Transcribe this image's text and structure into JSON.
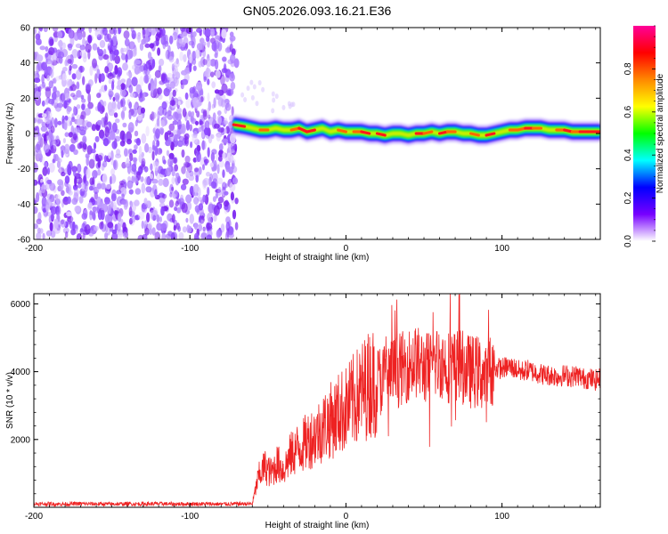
{
  "title": "GN05.2026.093.16.21.E36",
  "chart_data": [
    {
      "type": "heatmap",
      "name": "spectrogram",
      "xlabel": "Height of straight line (km)",
      "ylabel": "Frequency (Hz)",
      "xlim": [
        -200,
        163
      ],
      "ylim": [
        -60,
        60
      ],
      "xticks": [
        -200,
        -100,
        0,
        100
      ],
      "yticks": [
        -60,
        -40,
        -20,
        0,
        20,
        40,
        60
      ],
      "noise_region_x": [
        -200,
        -70
      ],
      "signal_start_x": -72,
      "ridge": {
        "x": [
          -72,
          -65,
          -60,
          -55,
          -50,
          -45,
          -40,
          -35,
          -30,
          -25,
          -20,
          -15,
          -10,
          -5,
          0,
          5,
          10,
          15,
          20,
          25,
          30,
          35,
          40,
          45,
          50,
          55,
          60,
          65,
          70,
          75,
          80,
          85,
          90,
          95,
          100,
          105,
          110,
          115,
          120,
          125,
          130,
          135,
          140,
          145,
          150,
          155,
          163
        ],
        "freq": [
          5,
          4,
          3,
          2,
          2,
          3,
          2,
          2,
          3,
          1,
          2,
          3,
          1,
          2,
          1,
          1,
          1,
          0,
          0,
          -1,
          0,
          0,
          -1,
          0,
          0,
          1,
          0,
          1,
          1,
          0,
          0,
          -1,
          -1,
          0,
          1,
          2,
          2,
          3,
          3,
          3,
          2,
          2,
          2,
          1,
          1,
          1,
          1
        ]
      },
      "colorbar": {
        "label": "Normalized spectral amplitude",
        "ticks": [
          0.0,
          0.2,
          0.4,
          0.6,
          0.8
        ],
        "tick_labels": [
          "0.0",
          "0.2",
          "0.4",
          "0.6",
          "0.8"
        ],
        "range": [
          0,
          1
        ],
        "colors": [
          "#ffffff",
          "#7700ff",
          "#0000ff",
          "#00ffff",
          "#00ff00",
          "#ffff00",
          "#ff8800",
          "#ff0000",
          "#ff0099"
        ]
      }
    },
    {
      "type": "line",
      "name": "snr",
      "xlabel": "Height of straight line (km)",
      "ylabel": "SNR (10 * v/v)",
      "xlim": [
        -200,
        163
      ],
      "ylim": [
        0,
        6300
      ],
      "xticks": [
        -200,
        -100,
        0,
        100
      ],
      "yticks": [
        2000,
        4000,
        6000
      ],
      "color": "#ee2222",
      "series": [
        {
          "name": "SNR",
          "x": [
            -200,
            -190,
            -180,
            -170,
            -160,
            -150,
            -140,
            -130,
            -120,
            -110,
            -100,
            -90,
            -80,
            -70,
            -60,
            -56,
            -52,
            -48,
            -44,
            -40,
            -36,
            -32,
            -28,
            -24,
            -20,
            -16,
            -12,
            -8,
            -4,
            0,
            4,
            8,
            12,
            16,
            20,
            24,
            28,
            32,
            36,
            40,
            44,
            48,
            52,
            56,
            60,
            64,
            68,
            72,
            76,
            80,
            84,
            88,
            90,
            92,
            94,
            96,
            100,
            104,
            108,
            112,
            116,
            120,
            124,
            128,
            132,
            136,
            140,
            144,
            148,
            152,
            156,
            160,
            163
          ],
          "y": [
            100,
            100,
            95,
            105,
            100,
            95,
            100,
            100,
            105,
            95,
            100,
            100,
            95,
            100,
            105,
            900,
            1200,
            1000,
            1300,
            1100,
            1500,
            1700,
            1800,
            2000,
            2100,
            2300,
            2500,
            2600,
            2800,
            2900,
            3100,
            3300,
            3500,
            3700,
            3700,
            3800,
            3900,
            4000,
            4100,
            4200,
            4300,
            4200,
            4100,
            4200,
            4300,
            4200,
            4100,
            4200,
            4100,
            4000,
            4000,
            3900,
            3600,
            4000,
            4100,
            4100,
            4100,
            4150,
            4100,
            4000,
            4050,
            4000,
            3950,
            3900,
            3900,
            3850,
            3900,
            3850,
            3900,
            3800,
            3800,
            3750,
            3800
          ]
        }
      ]
    }
  ]
}
